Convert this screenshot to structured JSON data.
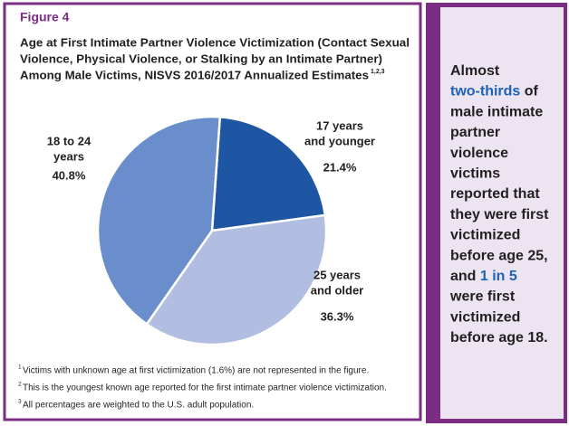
{
  "header": {
    "label": "Figure 4",
    "title_lines": [
      "Age at First Intimate Partner Violence Victimization (Contact Sexual",
      "Violence, Physical Violence, or Stalking by an Intimate Partner)",
      "Among Male Victims, NISVS 2016/2017 Annualized Estimates"
    ],
    "title_superscript": "1,2,3"
  },
  "chart_data": {
    "type": "pie",
    "categories": [
      [
        "17 years",
        "and younger"
      ],
      [
        "25 years",
        "and older"
      ],
      [
        "18 to 24",
        "years"
      ]
    ],
    "values": [
      21.4,
      36.3,
      40.8
    ],
    "value_labels": [
      "21.4%",
      "36.3%",
      "40.8%"
    ],
    "colors": [
      "#1f56a3",
      "#b1bde1",
      "#6a8ecb"
    ]
  },
  "footnotes": [
    {
      "mark": "1",
      "text": "Victims with unknown age at first victimization (1.6%) are not represented in the figure."
    },
    {
      "mark": "2",
      "text": "This is the youngest known age reported for the first intimate partner violence victimization."
    },
    {
      "mark": "3",
      "text": "All percentages are weighted to the U.S. adult population."
    }
  ],
  "sidebar": {
    "highlight_color": "#1c63b8",
    "lines": [
      [
        {
          "text": "Almost"
        }
      ],
      [
        {
          "text": "two-thirds",
          "highlight": true
        },
        {
          "text": " of"
        }
      ],
      [
        {
          "text": "male intimate"
        }
      ],
      [
        {
          "text": "partner"
        }
      ],
      [
        {
          "text": "violence"
        }
      ],
      [
        {
          "text": "victims"
        }
      ],
      [
        {
          "text": "reported that"
        }
      ],
      [
        {
          "text": "they were first"
        }
      ],
      [
        {
          "text": "victimized"
        }
      ],
      [
        {
          "text": "before age 25,"
        }
      ],
      [
        {
          "text": "and "
        },
        {
          "text": "1 in 5",
          "highlight": true
        }
      ],
      [
        {
          "text": "were first"
        }
      ],
      [
        {
          "text": "victimized"
        }
      ],
      [
        {
          "text": "before age 18."
        }
      ]
    ]
  }
}
